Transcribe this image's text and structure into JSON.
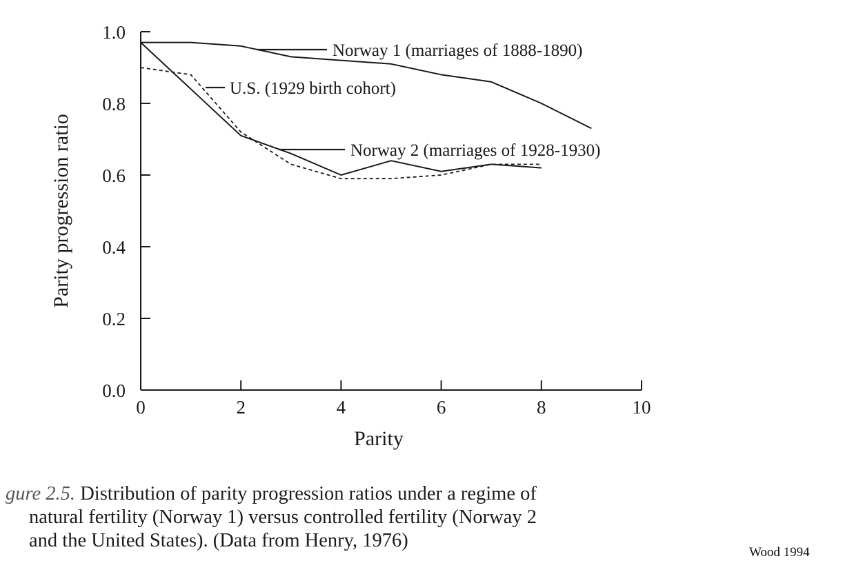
{
  "chart_data": {
    "type": "line",
    "xlabel": "Parity",
    "ylabel": "Parity progression ratio",
    "xlim": [
      0,
      10
    ],
    "ylim": [
      0,
      1.0
    ],
    "x_ticks": [
      "0",
      "2",
      "4",
      "6",
      "8",
      "10"
    ],
    "y_ticks": [
      "0.0",
      "0.2",
      "0.4",
      "0.6",
      "0.8",
      "1.0"
    ],
    "grid": false,
    "series": [
      {
        "name": "Norway 1 (marriages of 1888-1890)",
        "style": "solid",
        "x": [
          0,
          1,
          2,
          3,
          4,
          5,
          6,
          7,
          8,
          9
        ],
        "y": [
          0.97,
          0.97,
          0.96,
          0.93,
          0.92,
          0.91,
          0.88,
          0.86,
          0.8,
          0.73
        ]
      },
      {
        "name": "U.S. (1929 birth cohort)",
        "style": "dashed",
        "x": [
          0,
          1,
          2,
          3,
          4,
          5,
          6,
          7,
          8
        ],
        "y": [
          0.9,
          0.88,
          0.72,
          0.63,
          0.59,
          0.59,
          0.6,
          0.63,
          0.63
        ]
      },
      {
        "name": "Norway 2 (marriages of 1928-1930)",
        "style": "solid",
        "x": [
          0,
          1,
          2,
          3,
          4,
          5,
          6,
          7,
          8
        ],
        "y": [
          0.97,
          0.84,
          0.71,
          0.66,
          0.6,
          0.64,
          0.61,
          0.63,
          0.62
        ]
      }
    ]
  },
  "caption": {
    "figure_label": "gure 2.5.",
    "lines": [
      "Distribution of parity progression ratios under a regime of",
      "natural fertility (Norway 1) versus controlled fertility (Norway 2",
      "and the United States). (Data from Henry, 1976)"
    ]
  },
  "source_note": "Wood 1994"
}
